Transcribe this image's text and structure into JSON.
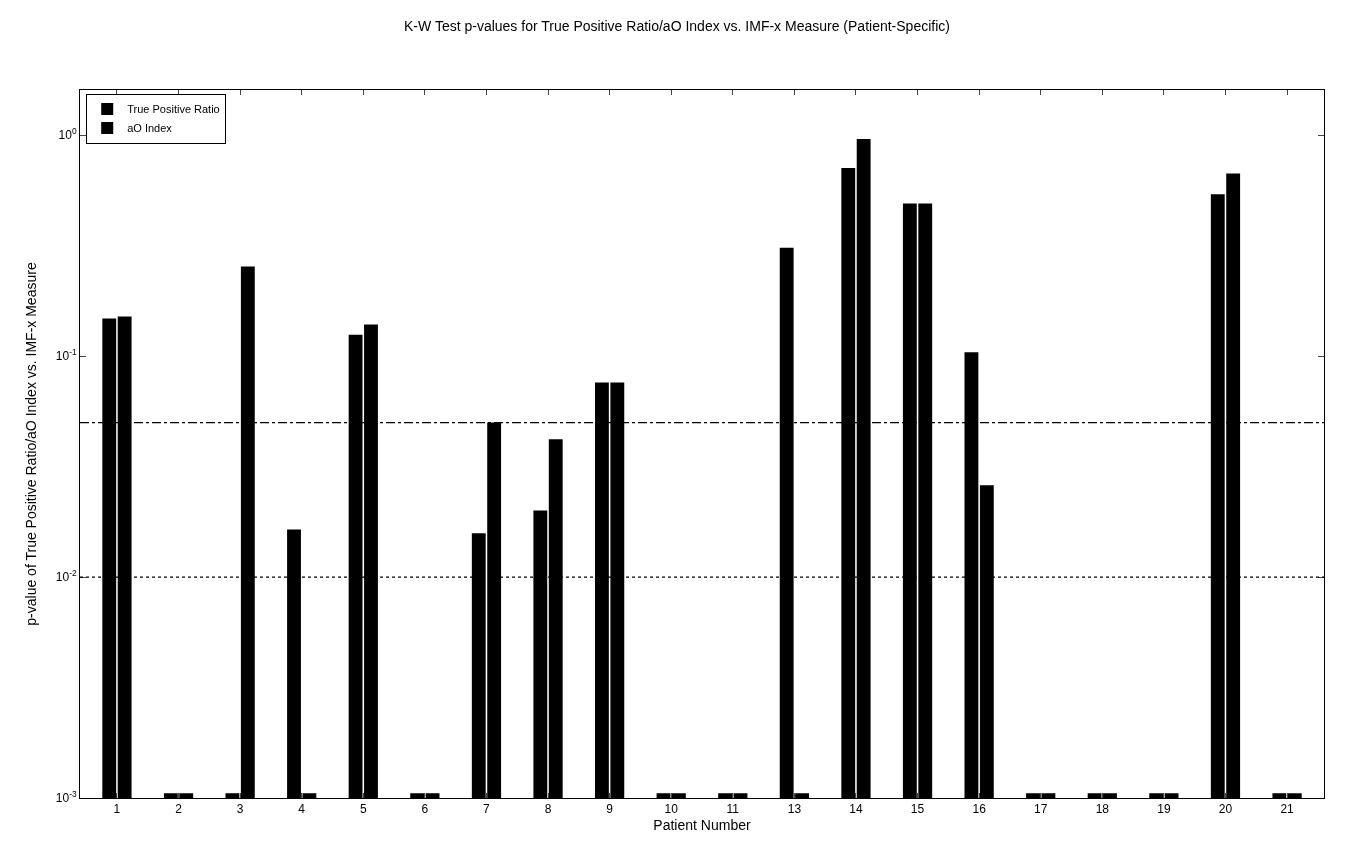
{
  "chart_data": {
    "type": "bar",
    "title": "K-W Test p-values for True Positive Ratio/aO Index vs. IMF-x Measure (Patient-Specific)",
    "xlabel": "Patient Number",
    "ylabel": "p-value of True Positive Ratio/aO Index vs. IMF-x Measure",
    "categories": [
      "1",
      "2",
      "3",
      "4",
      "5",
      "6",
      "7",
      "8",
      "9",
      "10",
      "11",
      "13",
      "14",
      "15",
      "16",
      "17",
      "18",
      "19",
      "20",
      "21"
    ],
    "series": [
      {
        "name": "True Positive Ratio",
        "color": "#000000",
        "values": [
          0.148,
          0.00105,
          0.00105,
          0.0164,
          0.125,
          0.00105,
          0.0158,
          0.02,
          0.076,
          0.00105,
          0.00105,
          0.309,
          0.71,
          0.49,
          0.104,
          0.00105,
          0.00105,
          0.00105,
          0.54,
          0.00105
        ]
      },
      {
        "name": "aO Index",
        "color": "#000000",
        "values": [
          0.151,
          0.00105,
          0.254,
          0.00105,
          0.139,
          0.00105,
          0.05,
          0.042,
          0.076,
          0.00105,
          0.00105,
          0.00105,
          0.96,
          0.49,
          0.026,
          0.00105,
          0.00105,
          0.00105,
          0.67,
          0.00105
        ]
      }
    ],
    "log": "y",
    "ylim": [
      0.001,
      1.6
    ],
    "yticks": [
      {
        "value": 0.001,
        "label": "10$^{-3}$"
      },
      {
        "value": 0.01,
        "label": "10$^{-2}$"
      },
      {
        "value": 0.1,
        "label": "10$^{-1}$"
      },
      {
        "value": 1,
        "label": "10$^{0}$"
      }
    ],
    "ref_lines": [
      {
        "axis": "y",
        "value": 0.05,
        "color": "#000000",
        "line_style": "dashdot"
      },
      {
        "axis": "y",
        "value": 0.01,
        "color": "#000000",
        "line_style": "dotted"
      }
    ],
    "legend": "top left"
  }
}
